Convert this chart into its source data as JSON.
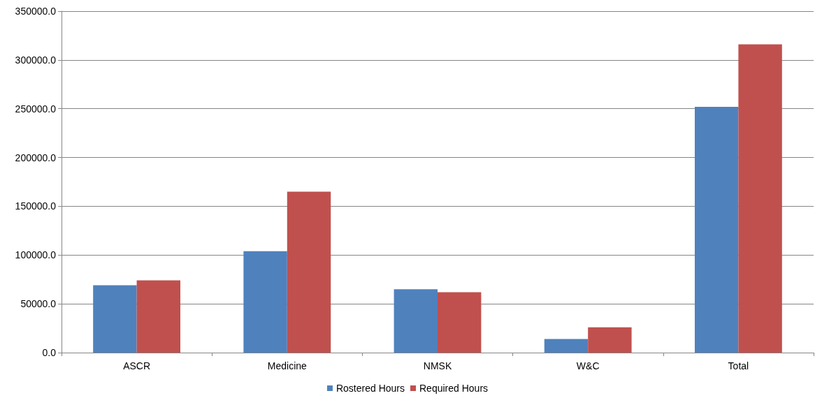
{
  "chart_data": {
    "type": "bar",
    "categories": [
      "ASCR",
      "Medicine",
      "NMSK",
      "W&C",
      "Total"
    ],
    "series": [
      {
        "name": "Rostered Hours",
        "color": "#4f81bd",
        "values": [
          69000,
          104000,
          65000,
          14000,
          252000
        ]
      },
      {
        "name": "Required Hours",
        "color": "#c0504d",
        "values": [
          74000,
          165000,
          62000,
          26000,
          316000
        ]
      }
    ],
    "ylim": [
      0,
      350000
    ],
    "yticks": [
      {
        "value": 0,
        "label": "0.0"
      },
      {
        "value": 50000,
        "label": "50000.0"
      },
      {
        "value": 100000,
        "label": "100000.0"
      },
      {
        "value": 150000,
        "label": "150000.0"
      },
      {
        "value": 200000,
        "label": "200000.0"
      },
      {
        "value": 250000,
        "label": "250000.0"
      },
      {
        "value": 300000,
        "label": "300000.0"
      },
      {
        "value": 350000,
        "label": "350000.0"
      }
    ],
    "grid": "y",
    "legend": "bottom"
  }
}
